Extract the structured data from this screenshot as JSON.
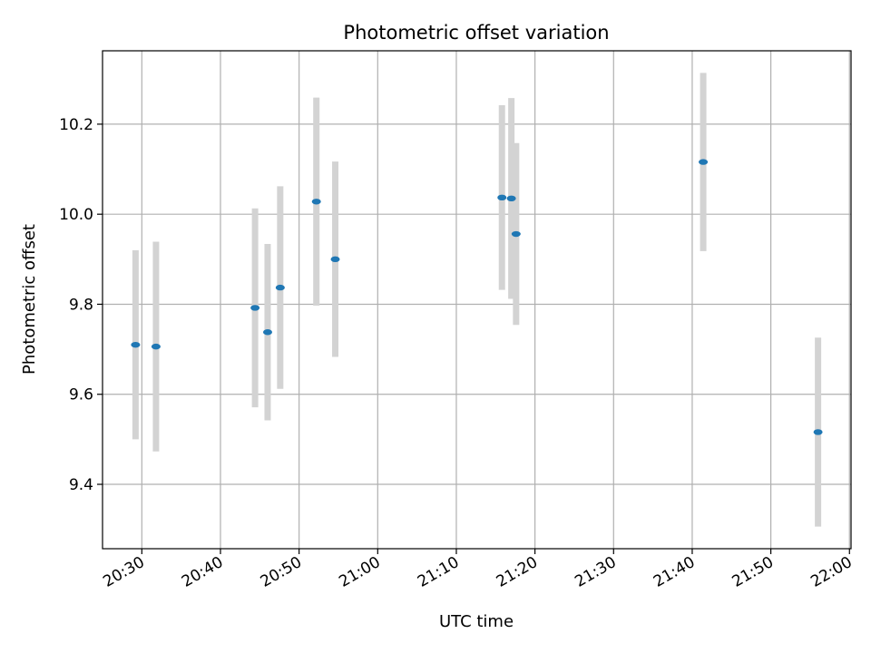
{
  "chart_data": {
    "type": "scatter",
    "title": "Photometric offset variation",
    "xlabel": "UTC time",
    "ylabel": "Photometric offset",
    "grid": true,
    "xlim": [
      "20:25",
      "22:00.2"
    ],
    "ylim": [
      9.257,
      10.363
    ],
    "xticks": [
      "20:30",
      "20:40",
      "20:50",
      "21:00",
      "21:10",
      "21:20",
      "21:30",
      "21:40",
      "21:50",
      "22:00"
    ],
    "yticks": [
      9.4,
      9.6,
      9.8,
      10.0,
      10.2
    ],
    "ytick_labels": [
      "9.4",
      "9.6",
      "9.8",
      "10.0",
      "10.2"
    ],
    "colors": {
      "point": "#1f77b4",
      "errorbar": "#d3d3d3",
      "grid": "#b0b0b0"
    },
    "points": [
      {
        "x": "20:29.2",
        "y": 9.71,
        "yerr": 0.21
      },
      {
        "x": "20:31.8",
        "y": 9.706,
        "yerr": 0.233
      },
      {
        "x": "20:44.4",
        "y": 9.792,
        "yerr": 0.221
      },
      {
        "x": "20:46.0",
        "y": 9.738,
        "yerr": 0.196
      },
      {
        "x": "20:47.6",
        "y": 9.837,
        "yerr": 0.225
      },
      {
        "x": "20:52.2",
        "y": 10.028,
        "yerr": 0.231
      },
      {
        "x": "20:54.6",
        "y": 9.9,
        "yerr": 0.217
      },
      {
        "x": "21:15.8",
        "y": 10.037,
        "yerr": 0.205
      },
      {
        "x": "21:17.0",
        "y": 10.035,
        "yerr": 0.223
      },
      {
        "x": "21:17.6",
        "y": 9.956,
        "yerr": 0.202
      },
      {
        "x": "21:41.4",
        "y": 10.116,
        "yerr": 0.198
      },
      {
        "x": "21:56.0",
        "y": 9.516,
        "yerr": 0.21
      }
    ]
  }
}
